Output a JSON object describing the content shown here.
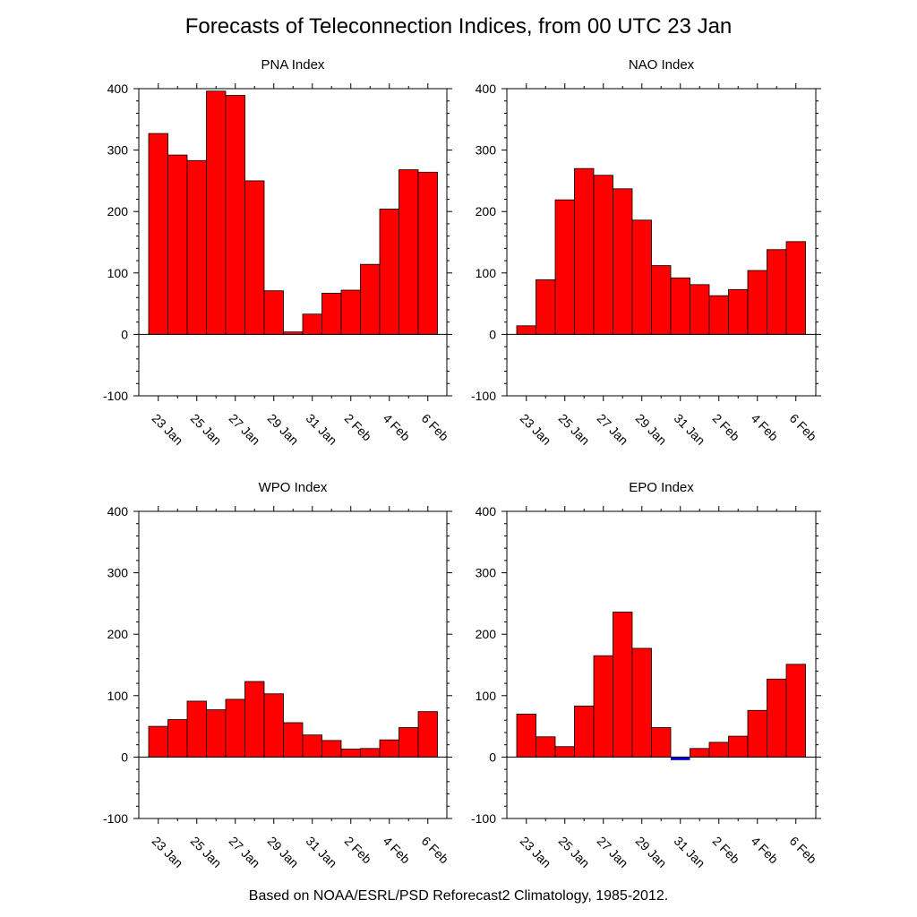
{
  "title": "Forecasts of Teleconnection Indices, from 00 UTC 23 Jan",
  "footer": "Based on NOAA/ESRL/PSD Reforecast2 Climatology, 1985-2012.",
  "colors": {
    "positive": "#ff0000",
    "negative": "#0000dd",
    "axis": "#000000"
  },
  "chart_data": [
    {
      "type": "bar",
      "title": "PNA Index",
      "ylim": [
        -100,
        400
      ],
      "yticks": [
        -100,
        0,
        100,
        200,
        300,
        400
      ],
      "xtick_labels": [
        "23 Jan",
        "25 Jan",
        "27 Jan",
        "29 Jan",
        "31 Jan",
        "2 Feb",
        "4 Feb",
        "6 Feb"
      ],
      "values": [
        327,
        292,
        283,
        396,
        389,
        250,
        71,
        4,
        33,
        67,
        72,
        114,
        204,
        268,
        264
      ]
    },
    {
      "type": "bar",
      "title": "NAO Index",
      "ylim": [
        -100,
        400
      ],
      "yticks": [
        -100,
        0,
        100,
        200,
        300,
        400
      ],
      "xtick_labels": [
        "23 Jan",
        "25 Jan",
        "27 Jan",
        "29 Jan",
        "31 Jan",
        "2 Feb",
        "4 Feb",
        "6 Feb"
      ],
      "values": [
        14,
        89,
        219,
        270,
        259,
        237,
        186,
        112,
        92,
        81,
        63,
        73,
        104,
        138,
        151
      ]
    },
    {
      "type": "bar",
      "title": "WPO Index",
      "ylim": [
        -100,
        400
      ],
      "yticks": [
        -100,
        0,
        100,
        200,
        300,
        400
      ],
      "xtick_labels": [
        "23 Jan",
        "25 Jan",
        "27 Jan",
        "29 Jan",
        "31 Jan",
        "2 Feb",
        "4 Feb",
        "6 Feb"
      ],
      "values": [
        50,
        61,
        91,
        77,
        94,
        123,
        103,
        56,
        36,
        27,
        13,
        14,
        28,
        48,
        74
      ]
    },
    {
      "type": "bar",
      "title": "EPO Index",
      "ylim": [
        -100,
        400
      ],
      "yticks": [
        -100,
        0,
        100,
        200,
        300,
        400
      ],
      "xtick_labels": [
        "23 Jan",
        "25 Jan",
        "27 Jan",
        "29 Jan",
        "31 Jan",
        "2 Feb",
        "4 Feb",
        "6 Feb"
      ],
      "values": [
        70,
        33,
        17,
        83,
        165,
        236,
        177,
        48,
        -5,
        14,
        24,
        34,
        76,
        127,
        151
      ]
    }
  ]
}
